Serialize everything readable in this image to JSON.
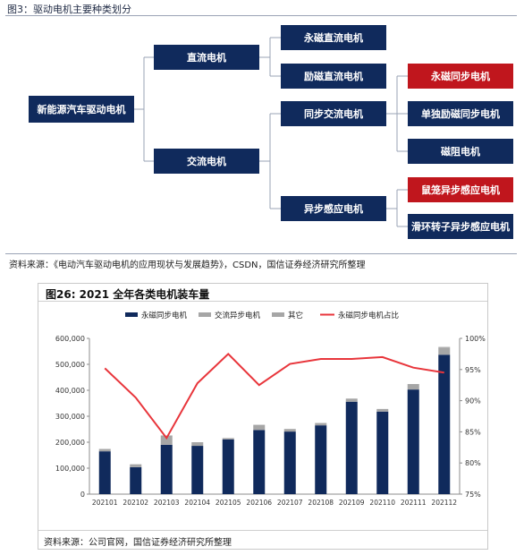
{
  "top_figure": {
    "title": "图3：驱动电机主要种类划分",
    "nodes": {
      "root": "新能源汽车驱动电机",
      "dc": "直流电机",
      "ac": "交流电机",
      "pm_dc": "永磁直流电机",
      "ex_dc": "励磁直流电机",
      "sync_ac": "同步交流电机",
      "async": "异步感应电机",
      "pm_sync": "永磁同步电机",
      "single_ex_sync": "单独励磁同步电机",
      "reluctance": "磁阻电机",
      "squirrel": "鼠笼异步感应电机",
      "slip_ring": "滑环转子异步感应电机"
    },
    "source": "资料来源：《电动汽车驱动电机的应用现状与发展趋势》，CSDN，国信证券经济研究所整理"
  },
  "chart_panel": {
    "title": "图26: 2021 全年各类电机装车量",
    "source": "资料来源：公司官网，国信证券经济研究所整理"
  },
  "colors": {
    "navy": "#102a5c",
    "red": "#c0161d",
    "bar_grey": "#a6a6a6",
    "line_red": "#e8353b"
  },
  "chart_data": {
    "type": "bar",
    "stacked": true,
    "title": "图26: 2021 全年各类电机装车量",
    "categories": [
      "202101",
      "202102",
      "202103",
      "202104",
      "202105",
      "202106",
      "202107",
      "202108",
      "202109",
      "202110",
      "202111",
      "202112"
    ],
    "series": [
      {
        "name": "永磁同步电机",
        "type": "bar",
        "axis": "left",
        "color": "#102a5c",
        "values": [
          165000,
          104000,
          190000,
          186000,
          211000,
          247000,
          241000,
          265000,
          356000,
          318000,
          403000,
          537000
        ]
      },
      {
        "name": "交流异步电机",
        "type": "bar",
        "axis": "left",
        "color": "#a6a6a6",
        "values": [
          8000,
          11000,
          35000,
          14000,
          5000,
          20000,
          10000,
          9000,
          12000,
          10000,
          20000,
          28000
        ]
      },
      {
        "name": "其它",
        "type": "bar",
        "axis": "left",
        "color": "#a6a6a6",
        "values": [
          1000,
          0,
          1000,
          0,
          0,
          0,
          0,
          0,
          0,
          0,
          1000,
          2000
        ]
      },
      {
        "name": "永磁同步电机占比",
        "type": "line",
        "axis": "right",
        "color": "#e8353b",
        "values": [
          95.2,
          90.5,
          84.0,
          92.8,
          97.5,
          92.5,
          95.9,
          96.7,
          96.7,
          97.0,
          95.3,
          94.5
        ]
      }
    ],
    "y_left": {
      "min": 0,
      "max": 600000,
      "ticks": [
        "0",
        "100,000",
        "200,000",
        "300,000",
        "400,000",
        "500,000",
        "600,000"
      ]
    },
    "y_right": {
      "min": 75,
      "max": 100,
      "ticks": [
        "75%",
        "80%",
        "85%",
        "90%",
        "95%",
        "100%"
      ]
    },
    "grid": false,
    "legend_position": "top"
  }
}
